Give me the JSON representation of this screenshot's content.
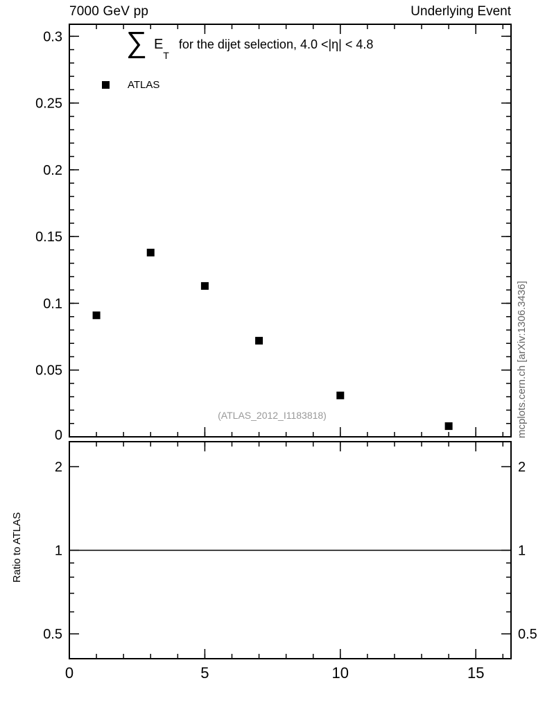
{
  "header": {
    "left": "7000 GeV pp",
    "right": "Underlying Event"
  },
  "title": {
    "sigma": "∑",
    "observable": "E",
    "subscript": "T",
    "description": "for the dijet selection, 4.0 <|η| < 4.8"
  },
  "legend": [
    {
      "label": "ATLAS",
      "marker": "filled-square",
      "color": "#000000"
    }
  ],
  "watermark": "(ATLAS_2012_I1183818)",
  "side_note": "mcplots.cern.ch [arXiv:1306.3436]",
  "ratio_panel": {
    "ylabel": "Ratio to ATLAS"
  },
  "chart_data": {
    "type": "scatter",
    "title": "∑ET for the dijet selection, 4.0 <|η| < 4.8",
    "xlabel": "",
    "ylabel": "",
    "grid": false,
    "legend_position": "top-left",
    "xlim": [
      0,
      16.3
    ],
    "ylim": [
      0,
      0.309
    ],
    "xticks": [
      0,
      5,
      10,
      15
    ],
    "xtick_labels": [
      "0",
      "5",
      "10",
      "15"
    ],
    "x_minor_step": 1,
    "yticks": [
      0,
      0.05,
      0.1,
      0.15,
      0.2,
      0.25,
      0.3
    ],
    "ytick_labels": [
      "0",
      "0.05",
      "0.1",
      "0.15",
      "0.2",
      "0.25",
      "0.3"
    ],
    "y_minor_step": 0.01,
    "series": [
      {
        "name": "ATLAS",
        "marker": "square",
        "color": "#000000",
        "x": [
          1,
          3,
          5,
          7,
          10,
          14
        ],
        "y": [
          0.091,
          0.138,
          0.113,
          0.072,
          0.031,
          0.008
        ]
      }
    ],
    "ratio": {
      "scale": "log",
      "ylim": [
        0.407,
        2.46
      ],
      "yticks": [
        0.5,
        1,
        2
      ],
      "ytick_labels": [
        "0.5",
        "1",
        "2"
      ],
      "yminor": [
        0.6,
        0.7,
        0.8,
        0.9
      ],
      "line": 1
    }
  }
}
